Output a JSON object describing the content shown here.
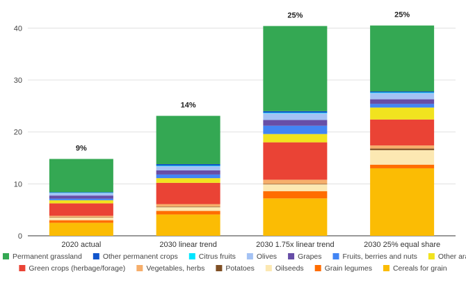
{
  "chart_data": {
    "type": "bar",
    "stacked": true,
    "categories": [
      "2020 actual",
      "2030 linear trend",
      "2030 1.75x linear trend",
      "2030 25% equal share"
    ],
    "share_labels": [
      "9%",
      "14%",
      "25%",
      "25%"
    ],
    "ylim": [
      0,
      43
    ],
    "yticks": [
      0,
      10,
      20,
      30,
      40
    ],
    "grid": true,
    "legend_position": "bottom",
    "series": [
      {
        "name": "Cereals for grain",
        "color": "#fbbc04",
        "values": [
          2.5,
          4.1,
          7.2,
          13.0
        ]
      },
      {
        "name": "Grain legumes",
        "color": "#ff6d01",
        "values": [
          0.5,
          0.7,
          1.4,
          0.7
        ]
      },
      {
        "name": "Oilseeds",
        "color": "#fce8b2",
        "values": [
          0.5,
          0.7,
          1.3,
          2.8
        ]
      },
      {
        "name": "Potatoes",
        "color": "#7f4f24",
        "values": [
          0.05,
          0.1,
          0.1,
          0.3
        ]
      },
      {
        "name": "Vegetables, herbs",
        "color": "#f6ae6b",
        "values": [
          0.3,
          0.5,
          0.8,
          0.6
        ]
      },
      {
        "name": "Green crops (herbage/forage)",
        "color": "#ea4335",
        "values": [
          2.4,
          4.1,
          7.2,
          5.0
        ]
      },
      {
        "name": "Other arable crops",
        "color": "#f1e31f",
        "values": [
          0.6,
          0.9,
          1.6,
          2.3
        ]
      },
      {
        "name": "Fruits, berries and nuts",
        "color": "#4285f4",
        "values": [
          0.3,
          0.7,
          1.6,
          0.7
        ]
      },
      {
        "name": "Grapes",
        "color": "#674ea7",
        "values": [
          0.6,
          0.8,
          1.1,
          0.9
        ]
      },
      {
        "name": "Olives",
        "color": "#a4c2f4",
        "values": [
          0.5,
          0.8,
          1.3,
          1.2
        ]
      },
      {
        "name": "Citrus fruits",
        "color": "#00e5ff",
        "values": [
          0.05,
          0.1,
          0.1,
          0.1
        ]
      },
      {
        "name": "Other permanent crops",
        "color": "#1155cc",
        "values": [
          0.1,
          0.3,
          0.3,
          0.2
        ]
      },
      {
        "name": "Permanent grassland",
        "color": "#34a853",
        "values": [
          6.4,
          9.3,
          16.4,
          12.7
        ]
      }
    ],
    "legend_order": [
      "Permanent grassland",
      "Other permanent crops",
      "Citrus fruits",
      "Olives",
      "Grapes",
      "Fruits, berries and nuts",
      "Other arable crops",
      "Green crops (herbage/forage)",
      "Vegetables, herbs",
      "Potatoes",
      "Oilseeds",
      "Grain legumes",
      "Cereals for grain"
    ]
  }
}
